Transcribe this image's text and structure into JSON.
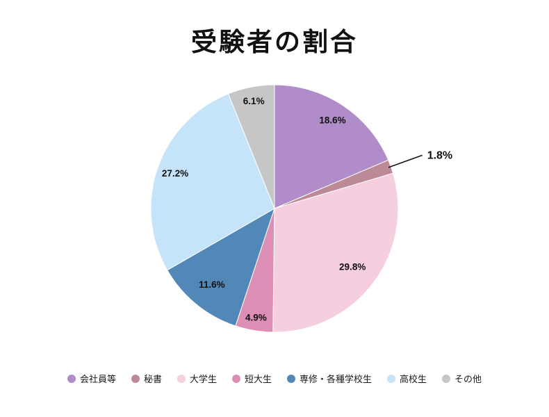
{
  "chart_data": {
    "type": "pie",
    "title": "受験者の割合",
    "start_angle_deg": 0,
    "direction": "clockwise",
    "legend_position": "bottom",
    "background_color": "#ffffff",
    "label_color": "#111111",
    "slices": [
      {
        "label": "会社員等",
        "value": 18.6,
        "pct_label": "18.6%",
        "color": "#b08cc8",
        "label_r": 0.85
      },
      {
        "label": "秘書",
        "value": 1.8,
        "pct_label": "1.8%",
        "color": "#bb8a96",
        "label_outside": true
      },
      {
        "label": "大学生",
        "value": 29.8,
        "pct_label": "29.8%",
        "color": "#f5cfdf",
        "label_r": 0.79
      },
      {
        "label": "短大生",
        "value": 4.9,
        "pct_label": "4.9%",
        "color": "#dd8eb4",
        "label_r": 0.9
      },
      {
        "label": "専修・各種学校生",
        "value": 11.6,
        "pct_label": "11.6%",
        "color": "#5288b8",
        "label_r": 0.8
      },
      {
        "label": "高校生",
        "value": 27.2,
        "pct_label": "27.2%",
        "color": "#c5e3f9",
        "label_r": 0.85
      },
      {
        "label": "その他",
        "value": 6.1,
        "pct_label": "6.1%",
        "color": "#c6c6c6",
        "label_r": 0.88
      }
    ]
  }
}
